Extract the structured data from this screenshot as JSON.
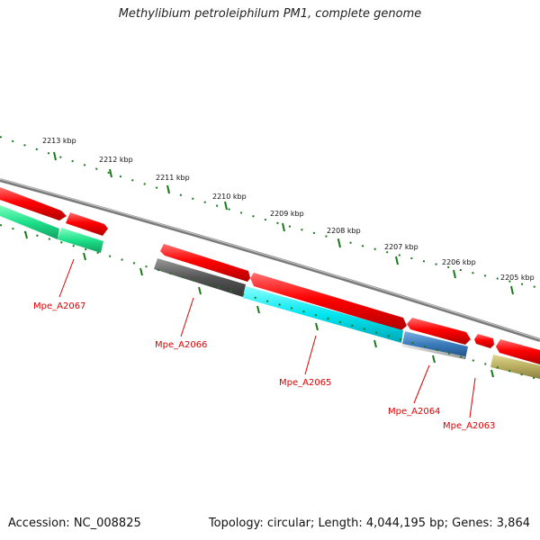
{
  "title": "Methylibium petroleiphilum PM1, complete genome",
  "footer": {
    "accession": "Accession: NC_008825",
    "summary": "Topology: circular; Length: 4,044,195 bp; Genes: 3,864"
  },
  "ruler_labels": [
    "2213 kbp",
    "2212 kbp",
    "2211 kbp",
    "2210 kbp",
    "2209 kbp",
    "2208 kbp",
    "2207 kbp",
    "2206 kbp",
    "2205 kbp"
  ],
  "genes": [
    "Mpe_A2067",
    "Mpe_A2066",
    "Mpe_A2065",
    "Mpe_A2064",
    "Mpe_A2063"
  ],
  "colors": {
    "cds": "#ff0000",
    "backbone": "#888888",
    "ruler": "#1a7a1a",
    "label": "#dd0000"
  }
}
